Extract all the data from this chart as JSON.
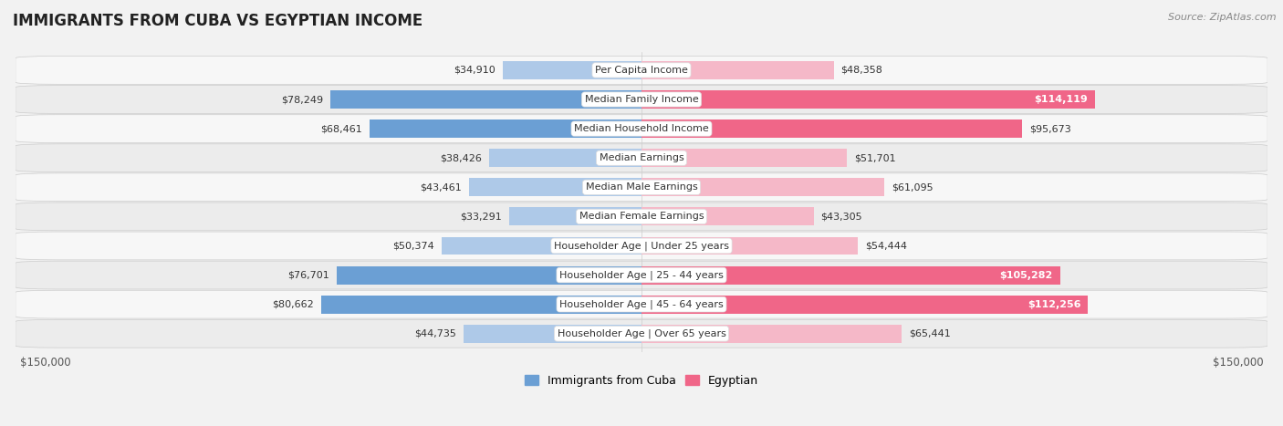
{
  "title": "IMMIGRANTS FROM CUBA VS EGYPTIAN INCOME",
  "source": "Source: ZipAtlas.com",
  "categories": [
    "Per Capita Income",
    "Median Family Income",
    "Median Household Income",
    "Median Earnings",
    "Median Male Earnings",
    "Median Female Earnings",
    "Householder Age | Under 25 years",
    "Householder Age | 25 - 44 years",
    "Householder Age | 45 - 64 years",
    "Householder Age | Over 65 years"
  ],
  "cuba_values": [
    34910,
    78249,
    68461,
    38426,
    43461,
    33291,
    50374,
    76701,
    80662,
    44735
  ],
  "egypt_values": [
    48358,
    114119,
    95673,
    51701,
    61095,
    43305,
    54444,
    105282,
    112256,
    65441
  ],
  "cuba_color_light": "#aec9e8",
  "cuba_color_dark": "#6b9fd4",
  "egypt_color_light": "#f5b8c8",
  "egypt_color_dark": "#f06688",
  "max_value": 150000,
  "bar_height": 0.62,
  "row_colors": [
    "#f7f7f7",
    "#ececec"
  ],
  "label_fontsize": 8.0,
  "title_fontsize": 12,
  "source_fontsize": 8,
  "legend_fontsize": 9,
  "value_fontsize": 8.0,
  "white_value_threshold": 0.7
}
